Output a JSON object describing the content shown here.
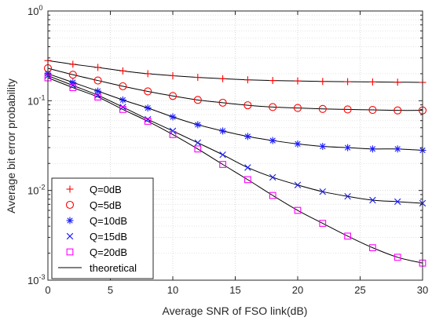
{
  "chart_data": {
    "type": "line",
    "title": "",
    "xlabel": "Average SNR of FSO link(dB)",
    "ylabel": "Average bit error probability",
    "xlim": [
      0,
      30
    ],
    "ylim": [
      0.001,
      1
    ],
    "y_scale": "log",
    "grid": true,
    "minor_grid": true,
    "legend_position": "bottom-left",
    "x_ticks": [
      0,
      5,
      10,
      15,
      20,
      25,
      30
    ],
    "x_tick_labels": [
      "0",
      "5",
      "10",
      "15",
      "20",
      "25",
      "30"
    ],
    "y_ticks": [
      1,
      0.1,
      0.01,
      0.001
    ],
    "y_tick_labels": [
      {
        "base": "10",
        "exp": "0"
      },
      {
        "base": "10",
        "exp": "-1"
      },
      {
        "base": "10",
        "exp": "-2"
      },
      {
        "base": "10",
        "exp": "-3"
      }
    ],
    "x": [
      0,
      2,
      4,
      6,
      8,
      10,
      12,
      14,
      16,
      18,
      20,
      22,
      24,
      26,
      28,
      30
    ],
    "series": [
      {
        "name": "Q=0dB",
        "marker": "plus",
        "color": "#ff0000",
        "values": [
          0.28,
          0.255,
          0.235,
          0.215,
          0.2,
          0.19,
          0.182,
          0.176,
          0.171,
          0.168,
          0.166,
          0.164,
          0.163,
          0.162,
          0.161,
          0.16
        ]
      },
      {
        "name": "Q=5dB",
        "marker": "circle",
        "color": "#ff0000",
        "values": [
          0.23,
          0.195,
          0.168,
          0.145,
          0.127,
          0.113,
          0.102,
          0.095,
          0.089,
          0.085,
          0.083,
          0.081,
          0.08,
          0.079,
          0.078,
          0.078
        ]
      },
      {
        "name": "Q=10dB",
        "marker": "asterisk",
        "color": "#1a1aff",
        "values": [
          0.2,
          0.16,
          0.128,
          0.102,
          0.083,
          0.066,
          0.054,
          0.046,
          0.04,
          0.036,
          0.033,
          0.031,
          0.03,
          0.029,
          0.029,
          0.028
        ]
      },
      {
        "name": "Q=15dB",
        "marker": "cross",
        "color": "#1a1aff",
        "values": [
          0.19,
          0.148,
          0.115,
          0.085,
          0.062,
          0.046,
          0.034,
          0.025,
          0.018,
          0.014,
          0.0115,
          0.0097,
          0.0086,
          0.0078,
          0.0075,
          0.0072
        ]
      },
      {
        "name": "Q=20dB",
        "marker": "square",
        "color": "#ff00ff",
        "values": [
          0.18,
          0.14,
          0.11,
          0.08,
          0.059,
          0.042,
          0.029,
          0.0195,
          0.0132,
          0.0088,
          0.006,
          0.0043,
          0.0031,
          0.0023,
          0.0018,
          0.00155
        ]
      }
    ],
    "theory_legend": {
      "name": "theoretical",
      "color": "#000000"
    }
  }
}
